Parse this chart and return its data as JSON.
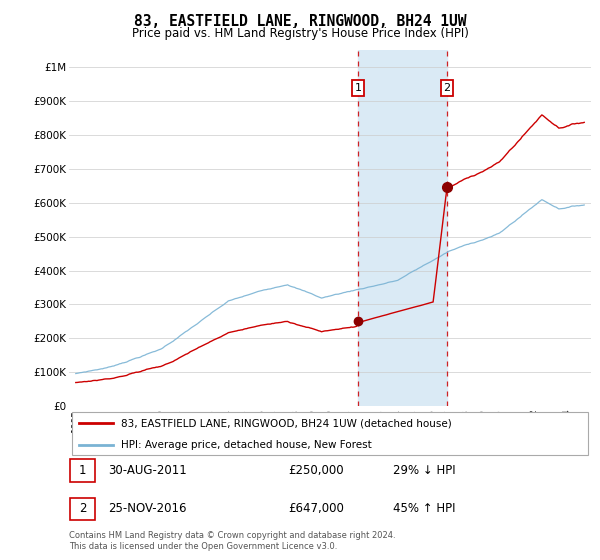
{
  "title": "83, EASTFIELD LANE, RINGWOOD, BH24 1UW",
  "subtitle": "Price paid vs. HM Land Registry's House Price Index (HPI)",
  "hpi_color": "#7ab3d4",
  "price_color": "#cc0000",
  "shaded_region_color": "#daeaf5",
  "ylim": [
    0,
    1050000
  ],
  "yticks": [
    0,
    100000,
    200000,
    300000,
    400000,
    500000,
    600000,
    700000,
    800000,
    900000,
    1000000
  ],
  "ytick_labels": [
    "£0",
    "£100K",
    "£200K",
    "£300K",
    "£400K",
    "£500K",
    "£600K",
    "£700K",
    "£800K",
    "£900K",
    "£1M"
  ],
  "purchase1_year": 2011.66,
  "purchase1_price": 250000,
  "purchase2_year": 2016.9,
  "purchase2_price": 647000,
  "legend_line1": "83, EASTFIELD LANE, RINGWOOD, BH24 1UW (detached house)",
  "legend_line2": "HPI: Average price, detached house, New Forest",
  "footnote1": "Contains HM Land Registry data © Crown copyright and database right 2024.",
  "footnote2": "This data is licensed under the Open Government Licence v3.0.",
  "table_row1": [
    "1",
    "30-AUG-2011",
    "£250,000",
    "29% ↓ HPI"
  ],
  "table_row2": [
    "2",
    "25-NOV-2016",
    "£647,000",
    "45% ↑ HPI"
  ]
}
